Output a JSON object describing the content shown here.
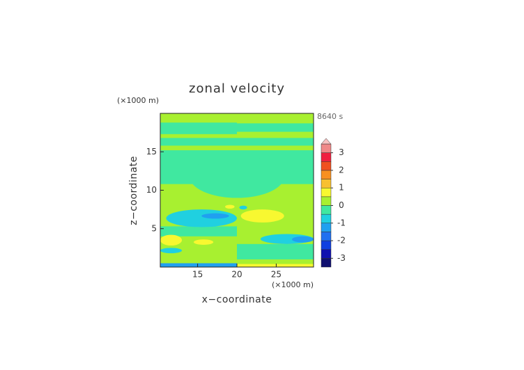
{
  "chart_data": {
    "type": "contour",
    "title": "zonal velocity",
    "x_label": "x−coordinate",
    "y_label": "z−coordinate",
    "x_unit": "(×1000 m)",
    "y_unit": "(×1000 m)",
    "time_label": "8640 s",
    "xlim": [
      10.25,
      29.75
    ],
    "ylim": [
      0,
      20
    ],
    "xticks": [
      15,
      20,
      25
    ],
    "yticks": [
      5,
      10,
      15
    ],
    "background_value": 0.25,
    "bands": [
      {
        "x": [
          10.25,
          20
        ],
        "z": [
          17.3,
          18.8
        ],
        "value": -0.25
      },
      {
        "x": [
          20,
          29.75
        ],
        "z": [
          17.6,
          18.7
        ],
        "value": -0.25
      },
      {
        "x": [
          10.25,
          29.75
        ],
        "z": [
          15.8,
          16.8
        ],
        "value": -0.25
      },
      {
        "x": [
          10.25,
          29.75
        ],
        "z": [
          10.8,
          15.2
        ],
        "value": -0.25
      },
      {
        "x": [
          10.25,
          20
        ],
        "z": [
          4,
          5.3
        ],
        "value": -0.25
      },
      {
        "x": [
          20,
          29.75
        ],
        "z": [
          1,
          3
        ],
        "value": -0.25
      },
      {
        "x": [
          10.25,
          20
        ],
        "z": [
          0,
          0.5
        ],
        "value": -1.25
      },
      {
        "x": [
          20,
          29.75
        ],
        "z": [
          0,
          0.4
        ],
        "value": 0.75
      }
    ],
    "blobs": [
      {
        "x": [
          14,
          26
        ],
        "z": [
          9,
          14.5
        ],
        "value": -0.25
      },
      {
        "x": [
          11,
          20
        ],
        "z": [
          5.2,
          7.5
        ],
        "value": -0.75
      },
      {
        "x": [
          15.5,
          19
        ],
        "z": [
          6.3,
          7
        ],
        "value": -1.25
      },
      {
        "x": [
          20.5,
          26
        ],
        "z": [
          5.8,
          7.5
        ],
        "value": 0.75
      },
      {
        "x": [
          10.25,
          13
        ],
        "z": [
          2.8,
          4.2
        ],
        "value": 0.75
      },
      {
        "x": [
          14.5,
          17
        ],
        "z": [
          2.9,
          3.6
        ],
        "value": 0.75
      },
      {
        "x": [
          23,
          29.75
        ],
        "z": [
          3,
          4.3
        ],
        "value": -0.75
      },
      {
        "x": [
          27,
          29.75
        ],
        "z": [
          3.2,
          4
        ],
        "value": -1.25
      },
      {
        "x": [
          10.25,
          13
        ],
        "z": [
          1.8,
          2.5
        ],
        "value": -0.75
      },
      {
        "x": [
          18.5,
          19.7
        ],
        "z": [
          7.6,
          8.1
        ],
        "value": 0.75
      },
      {
        "x": [
          20.3,
          21.3
        ],
        "z": [
          7.5,
          8
        ],
        "value": -0.75
      }
    ],
    "levels": [
      -3.5,
      -3,
      -2.5,
      -2,
      -1.5,
      -1,
      -0.5,
      0,
      0.5,
      1,
      1.5,
      2,
      2.5,
      3,
      3.5
    ],
    "colors": [
      "#101070",
      "#1010b0",
      "#1040e0",
      "#2070f0",
      "#20a0f0",
      "#20d0e0",
      "#40e8a0",
      "#a8f030",
      "#f8f830",
      "#f8c030",
      "#f89020",
      "#f05020",
      "#f02040",
      "#f08888"
    ],
    "extend_color": "#f8c0c0",
    "colorbar_ticks": [
      -3,
      -2,
      -1,
      0,
      1,
      2,
      3
    ]
  }
}
